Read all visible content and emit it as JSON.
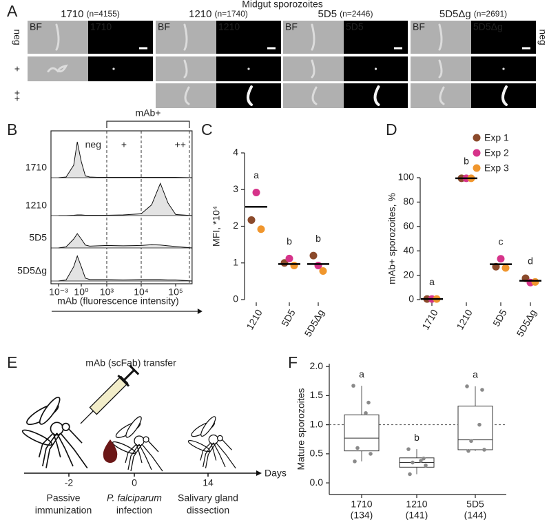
{
  "panel_labels": [
    "A",
    "B",
    "C",
    "D",
    "E",
    "F"
  ],
  "panel_a": {
    "title": "Midgut sporozoites",
    "bf_label": "BF",
    "rows": [
      "neg",
      "+",
      "++"
    ],
    "columns": [
      {
        "name": "1710",
        "n": "(n=4155)"
      },
      {
        "name": "1210",
        "n": "(n=1740)"
      },
      {
        "name": "5D5",
        "n": "(n=2446)"
      },
      {
        "name": "5D5Δg",
        "n": "(n=2691)"
      }
    ]
  },
  "panel_e": {
    "title": "mAb (scFab) transfer",
    "ticks": [
      "-2",
      "0",
      "14"
    ],
    "unit": "Days",
    "steps": [
      [
        "Passive",
        "immunization"
      ],
      [
        "P. falciparum",
        "infection"
      ],
      [
        "Salivary gland",
        "dissection"
      ]
    ]
  },
  "chart_data": [
    {
      "type": "density",
      "x_label": "mAb (fluorescence intensity)",
      "gate_label": "mAb+",
      "region_labels": [
        "neg",
        "+",
        "++"
      ],
      "gates": [
        1000,
        10000,
        250000
      ],
      "xlim": [
        0.0001,
        300000
      ],
      "xticks": [
        {
          "value": 0.001,
          "label": "10⁻³"
        },
        {
          "value": 1,
          "label": "10⁰"
        },
        {
          "value": 1000,
          "label": "10³"
        },
        {
          "value": 10000,
          "label": "10⁴"
        },
        {
          "value": 100000,
          "label": "10⁵"
        }
      ],
      "x": [
        0.001,
        0.01,
        0.1,
        0.3,
        1,
        3,
        10,
        100,
        1000,
        3000,
        10000,
        20000,
        36000,
        60000,
        100000,
        300000
      ],
      "series": [
        {
          "name": "1710",
          "values": [
            0,
            0.02,
            0.35,
            1,
            0.45,
            0.05,
            0.02,
            0.01,
            0.01,
            0.01,
            0.01,
            0.01,
            0.01,
            0.01,
            0.01,
            0
          ]
        },
        {
          "name": "1210",
          "values": [
            0,
            0,
            0.01,
            0.02,
            0.02,
            0.01,
            0.01,
            0.01,
            0.01,
            0.02,
            0.05,
            0.3,
            0.9,
            0.35,
            0.03,
            0
          ]
        },
        {
          "name": "5D5",
          "values": [
            0,
            0.03,
            0.25,
            0.4,
            0.25,
            0.08,
            0.05,
            0.06,
            0.07,
            0.06,
            0.07,
            0.09,
            0.08,
            0.06,
            0.04,
            0
          ]
        },
        {
          "name": "5D5Δg",
          "values": [
            0,
            0.03,
            0.4,
            0.7,
            0.4,
            0.08,
            0.04,
            0.04,
            0.04,
            0.03,
            0.04,
            0.04,
            0.04,
            0.03,
            0.03,
            0
          ]
        }
      ]
    },
    {
      "type": "dot",
      "y_label": "MFI, *10⁴",
      "categories": [
        "1210",
        "5D5",
        "5D5Δg"
      ],
      "ylim": [
        0,
        4
      ],
      "yticks": [
        0,
        1,
        2,
        3,
        4
      ],
      "series": [
        {
          "color": "#8b4a2b",
          "values": [
            2.17,
            1.0,
            1.2
          ]
        },
        {
          "color": "#d6338a",
          "values": [
            2.92,
            1.12,
            0.93
          ]
        },
        {
          "color": "#f0962d",
          "values": [
            1.92,
            0.93,
            0.78
          ]
        }
      ],
      "means": [
        2.53,
        0.97,
        0.97
      ],
      "annotations": [
        "a",
        "b",
        "b"
      ]
    },
    {
      "type": "dot",
      "y_label": "mAb+ sporozoites, %",
      "categories": [
        "1710",
        "1210",
        "5D5",
        "5D5Δg"
      ],
      "ylim": [
        0,
        100
      ],
      "yticks": [
        0,
        20,
        40,
        60,
        80,
        100
      ],
      "legend": "top-right",
      "series": [
        {
          "name": "Exp 1",
          "color": "#8b4a2b",
          "values": [
            0.5,
            99.5,
            27,
            17.5
          ]
        },
        {
          "name": "Exp 2",
          "color": "#d6338a",
          "values": [
            0.5,
            99.5,
            33.5,
            14
          ]
        },
        {
          "name": "Exp 3",
          "color": "#f0962d",
          "values": [
            0.5,
            99.5,
            26,
            14.5
          ]
        }
      ],
      "means": [
        0.5,
        99.5,
        29,
        15.5
      ],
      "annotations": [
        "a",
        "b",
        "c",
        "d"
      ]
    },
    {
      "type": "box",
      "y_label": "Mature sporozoites",
      "categories": [
        "1710",
        "1210",
        "5D5"
      ],
      "counts": [
        "(134)",
        "(141)",
        "(144)"
      ],
      "ylim": [
        -0.2,
        2.05
      ],
      "yticks": [
        {
          "value": 0,
          "label": "0.0"
        },
        {
          "value": 0.5,
          "label": "0.5"
        },
        {
          "value": 1,
          "label": "1.0"
        },
        {
          "value": 1.5,
          "label": "1.5"
        },
        {
          "value": 2,
          "label": "2.0"
        }
      ],
      "reference_line": 1,
      "boxes": [
        {
          "whisker_low": 0.37,
          "q1": 0.55,
          "median": 0.77,
          "q3": 1.17,
          "whisker_high": 1.67
        },
        {
          "whisker_low": 0.15,
          "q1": 0.27,
          "median": 0.35,
          "q3": 0.43,
          "whisker_high": 0.58
        },
        {
          "whisker_low": 0.55,
          "q1": 0.57,
          "median": 0.74,
          "q3": 1.32,
          "whisker_high": 1.66
        }
      ],
      "points": [
        [
          1.67,
          1.38,
          1.2,
          0.6,
          0.5,
          0.37
        ],
        [
          0.58,
          0.42,
          0.38,
          0.35,
          0.3,
          0.15
        ],
        [
          1.66,
          1.6,
          1.0,
          0.72,
          0.57,
          0.55
        ]
      ],
      "annotations": [
        "a",
        "b",
        "a"
      ]
    }
  ]
}
